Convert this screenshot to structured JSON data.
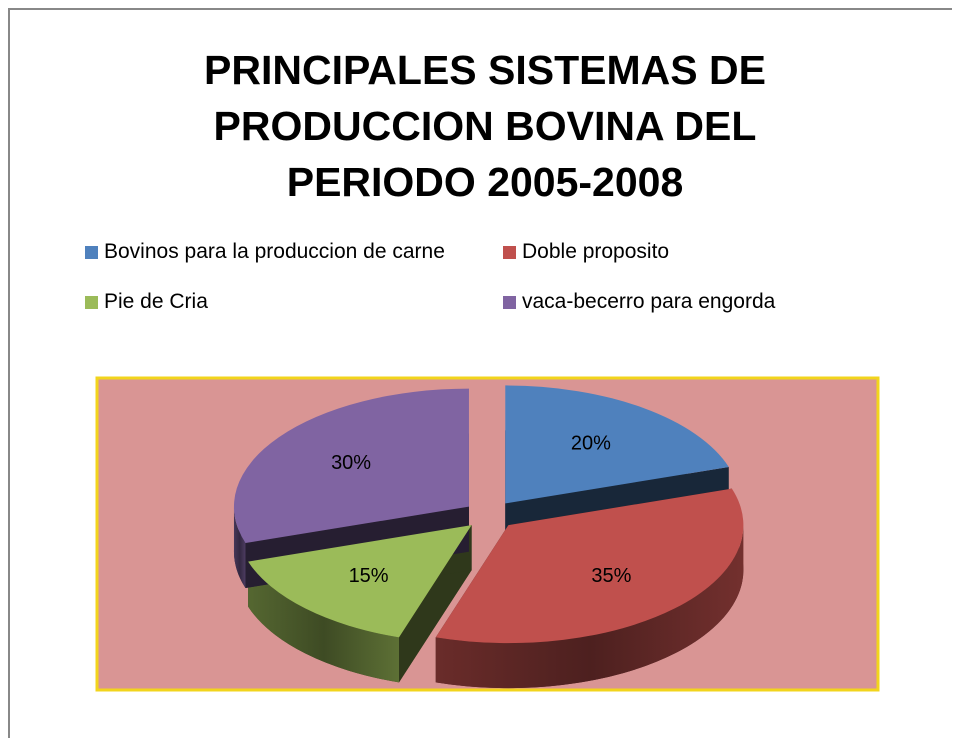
{
  "chart_data": {
    "type": "pie",
    "title": "PRINCIPALES SISTEMAS DE PRODUCCION BOVINA DEL PERIODO 2005-2008",
    "categories": [
      "Bovinos para la produccion de  carne",
      "Doble proposito",
      "Pie de Cria",
      "vaca-becerro para engorda"
    ],
    "values": [
      20,
      35,
      15,
      30
    ],
    "value_labels": [
      "20%",
      "35%",
      "15%",
      "30%"
    ],
    "colors": [
      "#4f81bd",
      "#c0504d",
      "#9bbb59",
      "#8064a2"
    ],
    "legend": "top"
  }
}
